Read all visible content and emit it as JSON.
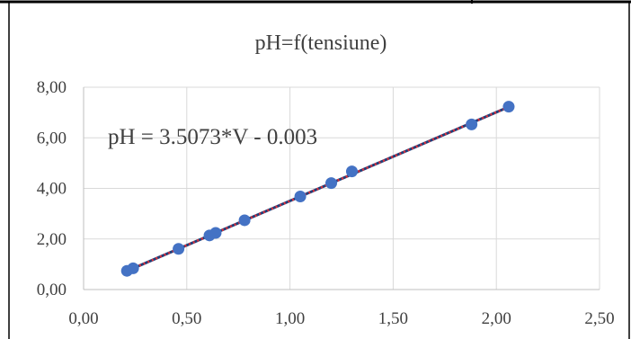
{
  "chart_data": {
    "type": "scatter",
    "title": "pH=f(tensiune)",
    "annotation": "pH = 3.5073*V - 0.003",
    "xlabel": "",
    "ylabel": "",
    "xlim": [
      0,
      2.5
    ],
    "ylim": [
      0,
      8
    ],
    "x_ticks": [
      0,
      0.5,
      1,
      1.5,
      2,
      2.5
    ],
    "y_ticks": [
      0,
      2,
      4,
      6,
      8
    ],
    "x_tick_labels": [
      "0,00",
      "0,50",
      "1,00",
      "1,50",
      "2,00",
      "2,50"
    ],
    "y_tick_labels": [
      "0,00",
      "2,00",
      "4,00",
      "6,00",
      "8,00"
    ],
    "grid": true,
    "legend": "none",
    "series": [
      {
        "points": [
          {
            "x": 0.21,
            "y": 0.74
          },
          {
            "x": 0.24,
            "y": 0.84
          },
          {
            "x": 0.46,
            "y": 1.61
          },
          {
            "x": 0.61,
            "y": 2.14
          },
          {
            "x": 0.64,
            "y": 2.24
          },
          {
            "x": 0.78,
            "y": 2.74
          },
          {
            "x": 1.05,
            "y": 3.68
          },
          {
            "x": 1.2,
            "y": 4.21
          },
          {
            "x": 1.3,
            "y": 4.67
          },
          {
            "x": 1.88,
            "y": 6.53
          },
          {
            "x": 2.06,
            "y": 7.23
          }
        ],
        "color": "#4472C4"
      }
    ],
    "trendline": {
      "slope": 3.5073,
      "intercept": -0.003,
      "x_range": [
        0.21,
        2.06
      ],
      "colors": [
        "#1F3F7A",
        "#E0303A"
      ]
    }
  }
}
